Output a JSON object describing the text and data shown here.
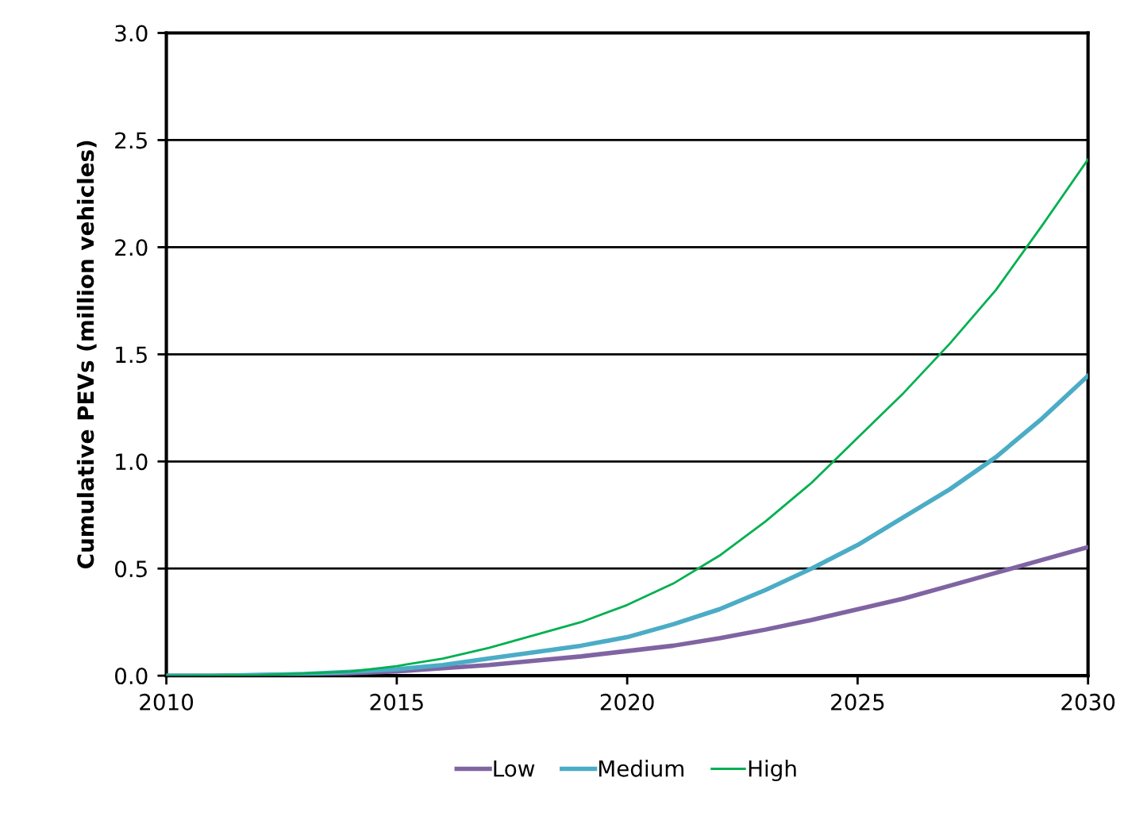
{
  "chart_data": {
    "type": "line",
    "ylabel": "Cumulative PEVs (million vehicles)",
    "x": [
      2010,
      2011,
      2012,
      2013,
      2014,
      2015,
      2016,
      2017,
      2018,
      2019,
      2020,
      2021,
      2022,
      2023,
      2024,
      2025,
      2026,
      2027,
      2028,
      2029,
      2030
    ],
    "series": [
      {
        "name": "Low",
        "color": "#8064a2",
        "values": [
          0,
          0,
          0.002,
          0.006,
          0.012,
          0.02,
          0.035,
          0.05,
          0.07,
          0.09,
          0.115,
          0.14,
          0.175,
          0.215,
          0.26,
          0.31,
          0.36,
          0.42,
          0.48,
          0.54,
          0.6
        ]
      },
      {
        "name": "Medium",
        "color": "#4bacc6",
        "values": [
          0,
          0,
          0.003,
          0.008,
          0.018,
          0.03,
          0.05,
          0.08,
          0.11,
          0.14,
          0.18,
          0.24,
          0.31,
          0.4,
          0.5,
          0.61,
          0.74,
          0.87,
          1.02,
          1.2,
          1.4
        ]
      },
      {
        "name": "High",
        "color": "#00b050",
        "values": [
          0,
          0.001,
          0.003,
          0.01,
          0.02,
          0.045,
          0.08,
          0.13,
          0.19,
          0.25,
          0.33,
          0.43,
          0.56,
          0.72,
          0.9,
          1.11,
          1.32,
          1.55,
          1.8,
          2.1,
          2.41
        ]
      }
    ],
    "xlim": [
      2010,
      2030
    ],
    "xticks": [
      2010,
      2015,
      2020,
      2025,
      2030
    ],
    "ylim": [
      0,
      3
    ],
    "yticks": [
      {
        "value": 0,
        "label": "0.0"
      },
      {
        "value": 0.5,
        "label": "0.5"
      },
      {
        "value": 1,
        "label": "1.0"
      },
      {
        "value": 1.5,
        "label": "1.5"
      },
      {
        "value": 2,
        "label": "2.0"
      },
      {
        "value": 2.5,
        "label": "2.5"
      },
      {
        "value": 3,
        "label": "3.0"
      }
    ],
    "grid": "y",
    "legend": "bottom",
    "marker": "none",
    "line_style": "solid"
  }
}
